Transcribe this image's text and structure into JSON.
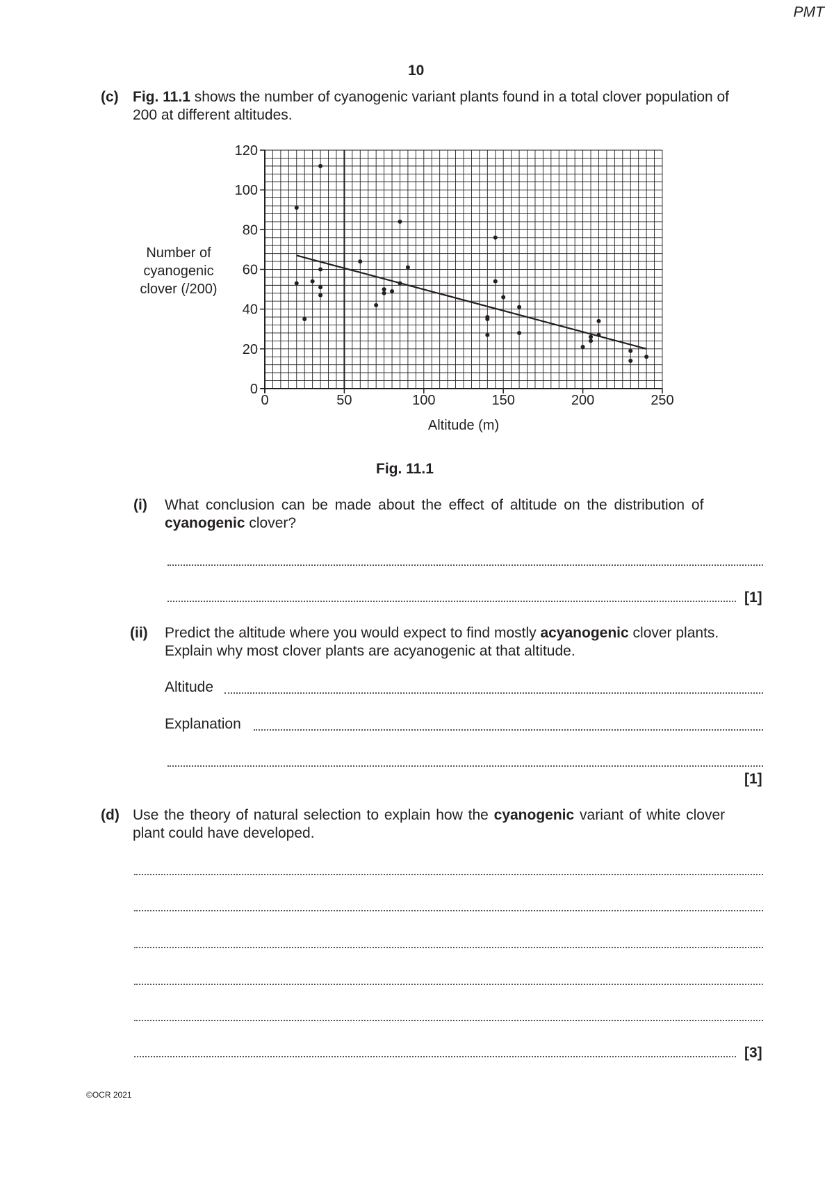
{
  "header": {
    "watermark": "PMT",
    "page_number": "10"
  },
  "part_c": {
    "label": "(c)",
    "fig_ref": "Fig. 11.1",
    "text_1": " shows the number of cyanogenic variant plants found in a total clover population of",
    "text_2": "200 at different altitudes.",
    "figure_caption": "Fig. 11.1",
    "q_i": {
      "label": "(i)",
      "line_1": "What conclusion can be made about the effect of altitude on the distribution of",
      "bold_word": "cyanogenic",
      "line_2_rest": " clover?",
      "marks": "[1]"
    },
    "q_ii": {
      "label": "(ii)",
      "line_1_pre": "Predict the altitude where you would expect to find mostly ",
      "bold_word": "acyanogenic",
      "line_1_post": " clover plants.",
      "line_2": "Explain why most clover plants are acyanogenic at that altitude.",
      "altitude_label": "Altitude",
      "explanation_label": "Explanation",
      "marks": "[1]"
    }
  },
  "part_d": {
    "label": "(d)",
    "line_1_pre": "Use the theory of natural selection to explain how the ",
    "bold_word": "cyanogenic",
    "line_1_post": " variant of white clover",
    "line_2": "plant could have developed.",
    "marks": "[3]"
  },
  "footer": {
    "copyright": "©OCR 2021"
  },
  "chart_data": {
    "type": "scatter",
    "title": "",
    "xlabel": "Altitude (m)",
    "ylabel_lines": [
      "Number of",
      "cyanogenic",
      "clover (/200)"
    ],
    "xlim": [
      0,
      250
    ],
    "ylim": [
      0,
      120
    ],
    "x_ticks": [
      0,
      50,
      100,
      150,
      200,
      250
    ],
    "y_ticks": [
      0,
      20,
      40,
      60,
      80,
      100,
      120
    ],
    "grid": true,
    "grid_minor_x": 5,
    "grid_minor_y": 4,
    "points": [
      [
        20,
        91
      ],
      [
        35,
        112
      ],
      [
        20,
        53
      ],
      [
        25,
        35
      ],
      [
        30,
        54
      ],
      [
        35,
        60
      ],
      [
        35,
        51
      ],
      [
        35,
        47
      ],
      [
        60,
        64
      ],
      [
        70,
        42
      ],
      [
        75,
        50
      ],
      [
        75,
        48
      ],
      [
        80,
        49
      ],
      [
        85,
        84
      ],
      [
        85,
        53
      ],
      [
        90,
        61
      ],
      [
        140,
        36
      ],
      [
        140,
        35
      ],
      [
        140,
        27
      ],
      [
        145,
        76
      ],
      [
        145,
        54
      ],
      [
        150,
        46
      ],
      [
        160,
        41
      ],
      [
        160,
        28
      ],
      [
        200,
        21
      ],
      [
        205,
        26
      ],
      [
        205,
        24
      ],
      [
        210,
        34
      ],
      [
        210,
        27
      ],
      [
        230,
        19
      ],
      [
        230,
        14
      ],
      [
        240,
        16
      ]
    ],
    "trend_line": [
      [
        20,
        67
      ],
      [
        240,
        20
      ]
    ],
    "color": "#231f20"
  }
}
